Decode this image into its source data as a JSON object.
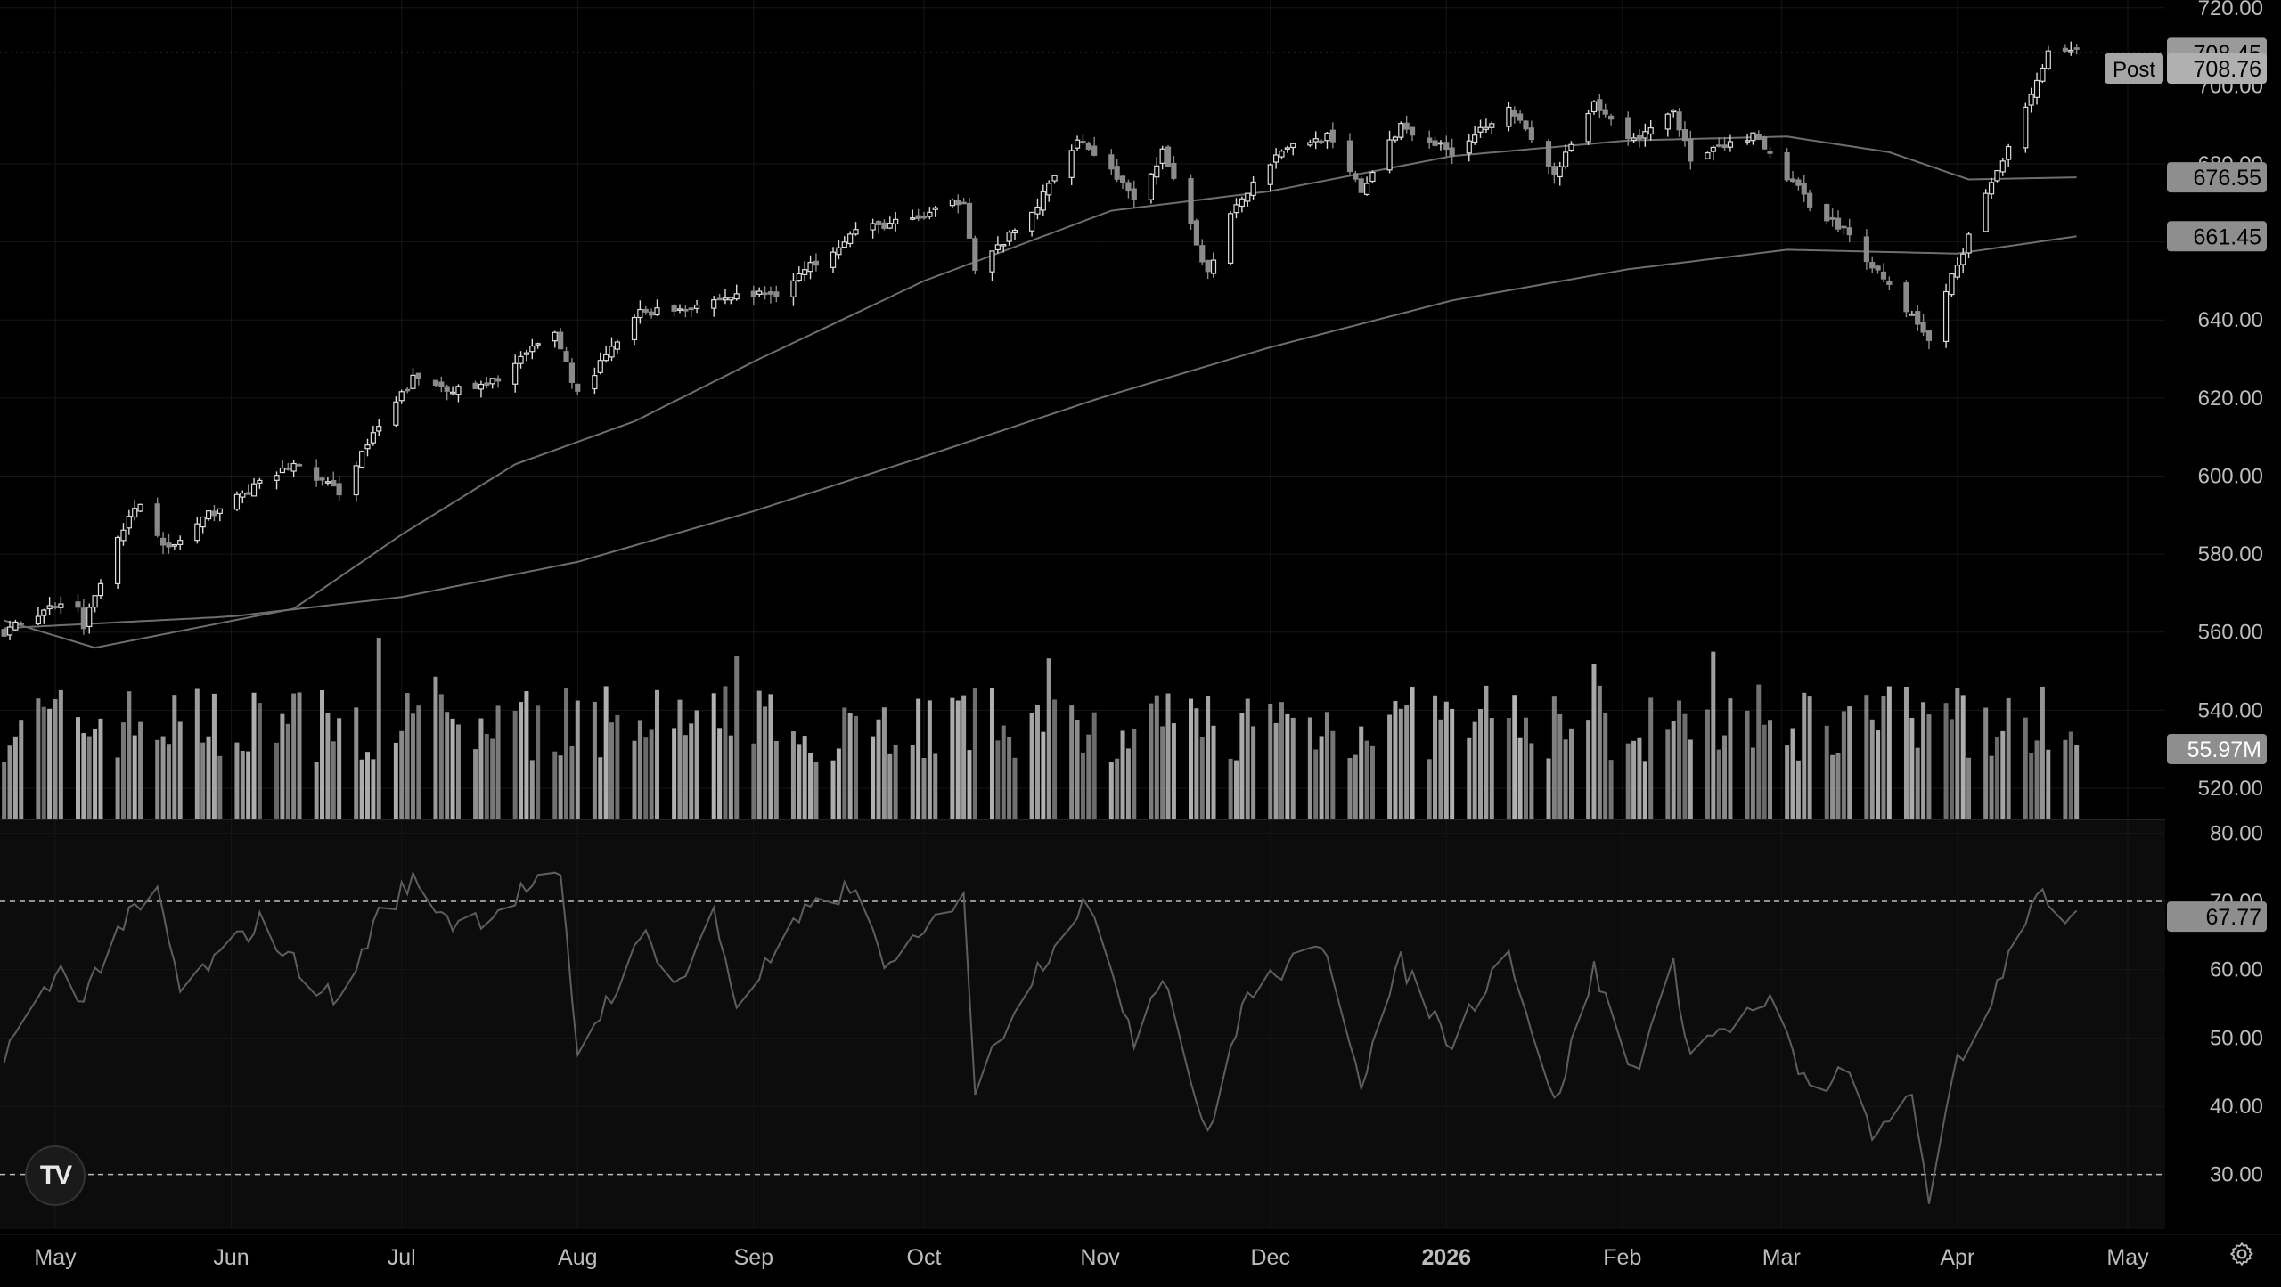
{
  "colors": {
    "background": "#000000",
    "rsi_band": "#0c0c0c",
    "grid": "#161616",
    "candle_up": "#dcdcdc",
    "candle_down": "#8a8a8a",
    "ma": "#6e6e6e",
    "volume": "#bdbdbd",
    "rsi_line": "#5e5e5e",
    "label_bg": "#9a9a9a",
    "label_text": "#000000",
    "axis_text": "#bdbdbd"
  },
  "chart_data": {
    "type": "candlestick",
    "x_ticks": [
      {
        "label": "May",
        "date": "2025-05-01"
      },
      {
        "label": "Jun",
        "date": "2025-06-01"
      },
      {
        "label": "Jul",
        "date": "2025-07-01"
      },
      {
        "label": "Aug",
        "date": "2025-08-01"
      },
      {
        "label": "Sep",
        "date": "2025-09-01"
      },
      {
        "label": "Oct",
        "date": "2025-10-01"
      },
      {
        "label": "Nov",
        "date": "2025-11-01"
      },
      {
        "label": "Dec",
        "date": "2025-12-01"
      },
      {
        "label": "2026",
        "date": "2026-01-01"
      },
      {
        "label": "Feb",
        "date": "2026-02-01"
      },
      {
        "label": "Mar",
        "date": "2026-03-01"
      },
      {
        "label": "Apr",
        "date": "2026-04-01"
      },
      {
        "label": "May",
        "date": "2026-05-01"
      }
    ],
    "price_ticks": [
      "520.00",
      "540.00",
      "560.00",
      "580.00",
      "600.00",
      "620.00",
      "640.00",
      "660.00",
      "680.00",
      "700.00",
      "720.00"
    ],
    "price_range": [
      512,
      722
    ],
    "price_anchors": [
      [
        "2025-04-22",
        560
      ],
      [
        "2025-05-02",
        568
      ],
      [
        "2025-05-05",
        566
      ],
      [
        "2025-05-06",
        562
      ],
      [
        "2025-05-12",
        585
      ],
      [
        "2025-05-16",
        593
      ],
      [
        "2025-05-21",
        581
      ],
      [
        "2025-05-28",
        590
      ],
      [
        "2025-06-06",
        598
      ],
      [
        "2025-06-12",
        603
      ],
      [
        "2025-06-20",
        596
      ],
      [
        "2025-06-24",
        606
      ],
      [
        "2025-07-03",
        625
      ],
      [
        "2025-07-11",
        622
      ],
      [
        "2025-07-16",
        623
      ],
      [
        "2025-07-28",
        637
      ],
      [
        "2025-08-01",
        621
      ],
      [
        "2025-08-12",
        642
      ],
      [
        "2025-08-19",
        643
      ],
      [
        "2025-08-28",
        646
      ],
      [
        "2025-09-05",
        647
      ],
      [
        "2025-09-19",
        663
      ],
      [
        "2025-09-30",
        666
      ],
      [
        "2025-10-08",
        671
      ],
      [
        "2025-10-10",
        653
      ],
      [
        "2025-10-20",
        667
      ],
      [
        "2025-10-28",
        687
      ],
      [
        "2025-11-04",
        677
      ],
      [
        "2025-11-07",
        670
      ],
      [
        "2025-11-12",
        683
      ],
      [
        "2025-11-20",
        652
      ],
      [
        "2025-11-24",
        668
      ],
      [
        "2025-12-03",
        684
      ],
      [
        "2025-12-11",
        687
      ],
      [
        "2025-12-17",
        673
      ],
      [
        "2025-12-24",
        690
      ],
      [
        "2026-01-02",
        683
      ],
      [
        "2026-01-12",
        695
      ],
      [
        "2026-01-20",
        677
      ],
      [
        "2026-01-27",
        695
      ],
      [
        "2026-02-03",
        686
      ],
      [
        "2026-02-10",
        694
      ],
      [
        "2026-02-13",
        681
      ],
      [
        "2026-02-24",
        687
      ],
      [
        "2026-03-06",
        670
      ],
      [
        "2026-03-12",
        663
      ],
      [
        "2026-03-20",
        649
      ],
      [
        "2026-03-27",
        635
      ],
      [
        "2026-03-31",
        651
      ],
      [
        "2026-04-02",
        658
      ],
      [
        "2026-04-07",
        675
      ],
      [
        "2026-04-13",
        695
      ],
      [
        "2026-04-17",
        708
      ],
      [
        "2026-04-22",
        708.45
      ]
    ],
    "ma_short": {
      "end_value": 676.55,
      "anchors": [
        [
          "2025-04-22",
          563
        ],
        [
          "2025-05-08",
          556
        ],
        [
          "2025-05-22",
          560
        ],
        [
          "2025-06-12",
          566
        ],
        [
          "2025-07-01",
          585
        ],
        [
          "2025-07-21",
          603
        ],
        [
          "2025-08-11",
          614
        ],
        [
          "2025-09-02",
          630
        ],
        [
          "2025-10-01",
          650
        ],
        [
          "2025-11-03",
          668
        ],
        [
          "2025-12-01",
          673
        ],
        [
          "2026-01-02",
          682
        ],
        [
          "2026-02-02",
          686
        ],
        [
          "2026-03-02",
          687
        ],
        [
          "2026-03-20",
          683
        ],
        [
          "2026-04-03",
          676
        ],
        [
          "2026-04-22",
          676.55
        ]
      ]
    },
    "ma_long": {
      "end_value": 661.45,
      "anchors": [
        [
          "2025-04-22",
          561
        ],
        [
          "2025-06-01",
          564
        ],
        [
          "2025-07-01",
          569
        ],
        [
          "2025-08-01",
          578
        ],
        [
          "2025-09-01",
          591
        ],
        [
          "2025-10-01",
          605
        ],
        [
          "2025-11-01",
          620
        ],
        [
          "2025-12-01",
          633
        ],
        [
          "2026-01-02",
          645
        ],
        [
          "2026-02-02",
          653
        ],
        [
          "2026-03-02",
          658
        ],
        [
          "2026-04-01",
          657
        ],
        [
          "2026-04-22",
          661.45
        ]
      ]
    },
    "volume_last": "55.97M",
    "rsi": {
      "ticks": [
        "30.00",
        "40.00",
        "50.00",
        "60.00",
        "70.00",
        "80.00"
      ],
      "range": [
        22,
        82
      ],
      "overbought": 70,
      "oversold": 30,
      "last_label": "67.77",
      "anchors": [
        [
          "2025-04-22",
          48
        ],
        [
          "2025-05-02",
          60
        ],
        [
          "2025-05-06",
          56
        ],
        [
          "2025-05-12",
          66
        ],
        [
          "2025-05-19",
          71
        ],
        [
          "2025-05-23",
          57
        ],
        [
          "2025-05-30",
          62
        ],
        [
          "2025-06-06",
          67
        ],
        [
          "2025-06-13",
          60
        ],
        [
          "2025-06-20",
          55
        ],
        [
          "2025-06-27",
          68
        ],
        [
          "2025-07-03",
          73
        ],
        [
          "2025-07-10",
          67
        ],
        [
          "2025-07-17",
          68
        ],
        [
          "2025-07-23",
          72
        ],
        [
          "2025-07-29",
          73
        ],
        [
          "2025-08-01",
          48
        ],
        [
          "2025-08-08",
          58
        ],
        [
          "2025-08-13",
          65
        ],
        [
          "2025-08-19",
          58
        ],
        [
          "2025-08-25",
          68
        ],
        [
          "2025-08-29",
          55
        ],
        [
          "2025-09-10",
          68
        ],
        [
          "2025-09-18",
          72
        ],
        [
          "2025-09-25",
          60
        ],
        [
          "2025-10-01",
          65
        ],
        [
          "2025-10-08",
          72
        ],
        [
          "2025-10-10",
          42
        ],
        [
          "2025-10-17",
          55
        ],
        [
          "2025-10-24",
          64
        ],
        [
          "2025-10-29",
          70
        ],
        [
          "2025-11-04",
          58
        ],
        [
          "2025-11-07",
          50
        ],
        [
          "2025-11-12",
          60
        ],
        [
          "2025-11-20",
          35
        ],
        [
          "2025-11-26",
          55
        ],
        [
          "2025-12-03",
          60
        ],
        [
          "2025-12-11",
          63
        ],
        [
          "2025-12-17",
          44
        ],
        [
          "2025-12-24",
          61
        ],
        [
          "2026-01-02",
          49
        ],
        [
          "2026-01-07",
          57
        ],
        [
          "2026-01-12",
          63
        ],
        [
          "2026-01-20",
          40
        ],
        [
          "2026-01-27",
          60
        ],
        [
          "2026-02-03",
          45
        ],
        [
          "2026-02-10",
          60
        ],
        [
          "2026-02-13",
          48
        ],
        [
          "2026-02-20",
          52
        ],
        [
          "2026-02-27",
          55
        ],
        [
          "2026-03-06",
          42
        ],
        [
          "2026-03-12",
          45
        ],
        [
          "2026-03-18",
          35
        ],
        [
          "2026-03-24",
          42
        ],
        [
          "2026-03-27",
          27
        ],
        [
          "2026-04-01",
          46
        ],
        [
          "2026-04-03",
          48
        ],
        [
          "2026-04-09",
          60
        ],
        [
          "2026-04-15",
          72
        ],
        [
          "2026-04-19",
          68
        ],
        [
          "2026-04-22",
          67.77
        ]
      ]
    },
    "last_price_label": "708.45",
    "post_label": "Post",
    "post_price": "708.76",
    "ma_short_label": "676.55",
    "ma_long_label": "661.45"
  }
}
